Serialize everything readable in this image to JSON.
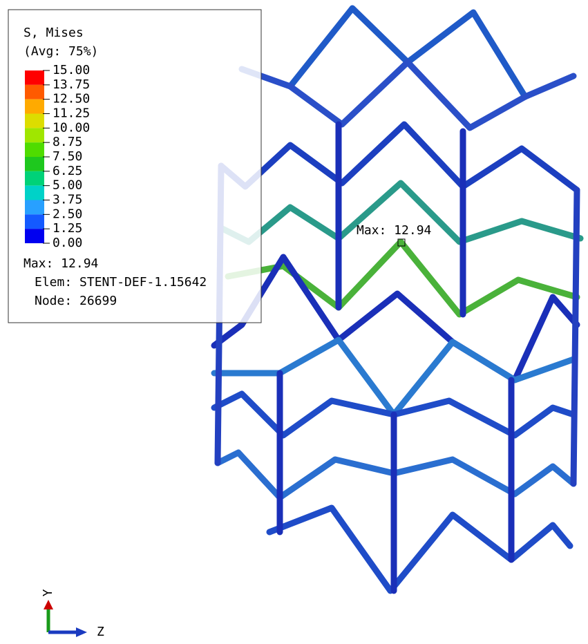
{
  "legend": {
    "title": "S, Mises",
    "subtitle": "(Avg: 75%)",
    "levels": [
      "15.00",
      "13.75",
      "12.50",
      "11.25",
      "10.00",
      "8.75",
      "7.50",
      "6.25",
      "5.00",
      "3.75",
      "2.50",
      "1.25",
      "0.00"
    ],
    "colors": [
      "#ff0000",
      "#ff5a00",
      "#ffaa00",
      "#dddd00",
      "#a0e600",
      "#4fdc00",
      "#1ec81e",
      "#00d278",
      "#00d2c8",
      "#28a0ff",
      "#145aff",
      "#0000f0"
    ],
    "max": "Max: 12.94",
    "elem": "Elem: STENT-DEF-1.15642",
    "node": "Node: 26699"
  },
  "annotation": "Max: 12.94",
  "triad": {
    "vertical": "Y",
    "horizontal": "Z"
  }
}
